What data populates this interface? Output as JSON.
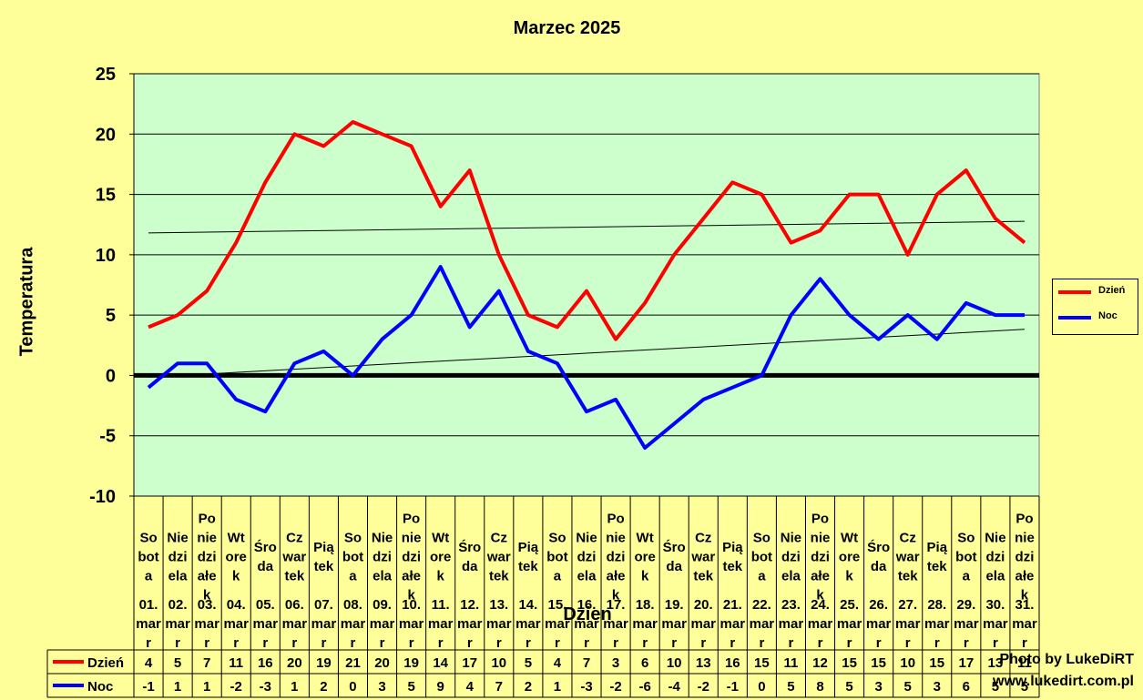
{
  "chart_data": {
    "type": "line",
    "title": "Marzec 2025",
    "xlabel": "Dzien",
    "ylabel": "Temperatura",
    "ylim": [
      -10,
      25
    ],
    "yticks": [
      25,
      20,
      15,
      10,
      5,
      0,
      -5,
      -10
    ],
    "grid": true,
    "legend_position": "right",
    "categories": [
      {
        "day": [
          "So",
          "bot",
          "a"
        ],
        "date": [
          "01.",
          "mar",
          "r"
        ]
      },
      {
        "day": [
          "Nie",
          "dzi",
          "ela"
        ],
        "date": [
          "02.",
          "mar",
          "r"
        ]
      },
      {
        "day": [
          "Po",
          "nie",
          "dzi",
          "ałe",
          "k"
        ],
        "date": [
          "03.",
          "mar",
          "r"
        ]
      },
      {
        "day": [
          "Wt",
          "ore",
          "k"
        ],
        "date": [
          "04.",
          "mar",
          "r"
        ]
      },
      {
        "day": [
          "Śro",
          "da"
        ],
        "date": [
          "05.",
          "mar",
          "r"
        ]
      },
      {
        "day": [
          "Cz",
          "war",
          "tek"
        ],
        "date": [
          "06.",
          "mar",
          "r"
        ]
      },
      {
        "day": [
          "Pią",
          "tek"
        ],
        "date": [
          "07.",
          "mar",
          "r"
        ]
      },
      {
        "day": [
          "So",
          "bot",
          "a"
        ],
        "date": [
          "08.",
          "mar",
          "r"
        ]
      },
      {
        "day": [
          "Nie",
          "dzi",
          "ela"
        ],
        "date": [
          "09.",
          "mar",
          "r"
        ]
      },
      {
        "day": [
          "Po",
          "nie",
          "dzi",
          "ałe",
          "k"
        ],
        "date": [
          "10.",
          "mar",
          "r"
        ]
      },
      {
        "day": [
          "Wt",
          "ore",
          "k"
        ],
        "date": [
          "11.",
          "mar",
          "r"
        ]
      },
      {
        "day": [
          "Śro",
          "da"
        ],
        "date": [
          "12.",
          "mar",
          "r"
        ]
      },
      {
        "day": [
          "Cz",
          "war",
          "tek"
        ],
        "date": [
          "13.",
          "mar",
          "r"
        ]
      },
      {
        "day": [
          "Pią",
          "tek"
        ],
        "date": [
          "14.",
          "mar",
          "r"
        ]
      },
      {
        "day": [
          "So",
          "bot",
          "a"
        ],
        "date": [
          "15.",
          "mar",
          "r"
        ]
      },
      {
        "day": [
          "Nie",
          "dzi",
          "ela"
        ],
        "date": [
          "16.",
          "mar",
          "r"
        ]
      },
      {
        "day": [
          "Po",
          "nie",
          "dzi",
          "ałe",
          "k"
        ],
        "date": [
          "17.",
          "mar",
          "r"
        ]
      },
      {
        "day": [
          "Wt",
          "ore",
          "k"
        ],
        "date": [
          "18.",
          "mar",
          "r"
        ]
      },
      {
        "day": [
          "Śro",
          "da"
        ],
        "date": [
          "19.",
          "mar",
          "r"
        ]
      },
      {
        "day": [
          "Cz",
          "war",
          "tek"
        ],
        "date": [
          "20.",
          "mar",
          "r"
        ]
      },
      {
        "day": [
          "Pią",
          "tek"
        ],
        "date": [
          "21.",
          "mar",
          "r"
        ]
      },
      {
        "day": [
          "So",
          "bot",
          "a"
        ],
        "date": [
          "22.",
          "mar",
          "r"
        ]
      },
      {
        "day": [
          "Nie",
          "dzi",
          "ela"
        ],
        "date": [
          "23.",
          "mar",
          "r"
        ]
      },
      {
        "day": [
          "Po",
          "nie",
          "dzi",
          "ałe",
          "k"
        ],
        "date": [
          "24.",
          "mar",
          "r"
        ]
      },
      {
        "day": [
          "Wt",
          "ore",
          "k"
        ],
        "date": [
          "25.",
          "mar",
          "r"
        ]
      },
      {
        "day": [
          "Śro",
          "da"
        ],
        "date": [
          "26.",
          "mar",
          "r"
        ]
      },
      {
        "day": [
          "Cz",
          "war",
          "tek"
        ],
        "date": [
          "27.",
          "mar",
          "r"
        ]
      },
      {
        "day": [
          "Pią",
          "tek"
        ],
        "date": [
          "28.",
          "mar",
          "r"
        ]
      },
      {
        "day": [
          "So",
          "bot",
          "a"
        ],
        "date": [
          "29.",
          "mar",
          "r"
        ]
      },
      {
        "day": [
          "Nie",
          "dzi",
          "ela"
        ],
        "date": [
          "30.",
          "mar",
          "r"
        ]
      },
      {
        "day": [
          "Po",
          "nie",
          "dzi",
          "ałe",
          "k"
        ],
        "date": [
          "31.",
          "mar",
          "r"
        ]
      }
    ],
    "series": [
      {
        "name": "Dzień",
        "color": "#ff0000",
        "values": [
          4,
          5,
          7,
          11,
          16,
          20,
          19,
          21,
          20,
          19,
          14,
          17,
          10,
          5,
          4,
          7,
          3,
          6,
          10,
          13,
          16,
          15,
          11,
          12,
          15,
          15,
          10,
          15,
          17,
          13,
          11
        ]
      },
      {
        "name": "Noc",
        "color": "#0000ff",
        "values": [
          -1,
          1,
          1,
          -2,
          -3,
          1,
          2,
          0,
          3,
          5,
          9,
          4,
          7,
          2,
          1,
          -3,
          -2,
          -6,
          -4,
          -2,
          -1,
          0,
          5,
          8,
          5,
          3,
          5,
          3,
          6,
          5,
          5
        ]
      }
    ],
    "trendlines": true,
    "colors": {
      "plot_bg": "#ccffcc",
      "page_bg": "#ffff99"
    }
  },
  "credits": {
    "line1": "Photo by LukeDiRT",
    "line2": "www.lukedirt.com.pl"
  }
}
